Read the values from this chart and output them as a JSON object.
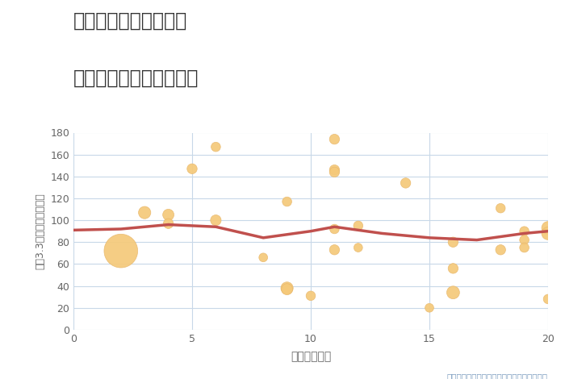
{
  "title_line1": "千葉県成田市北須賀の",
  "title_line2": "駅距離別中古戸建て価格",
  "xlabel": "駅距離（分）",
  "ylabel": "坪（3.3㎡）単価（万円）",
  "annotation": "円の大きさは、取引のあった物件面積を示す",
  "xlim": [
    0,
    20
  ],
  "ylim": [
    0,
    180
  ],
  "yticks": [
    0,
    20,
    40,
    60,
    80,
    100,
    120,
    140,
    160,
    180
  ],
  "xticks": [
    0,
    5,
    10,
    15,
    20
  ],
  "scatter_x": [
    2,
    3,
    4,
    4,
    5,
    6,
    6,
    8,
    9,
    9,
    9,
    10,
    11,
    11,
    11,
    11,
    11,
    12,
    12,
    14,
    15,
    16,
    16,
    16,
    18,
    18,
    19,
    19,
    19,
    20,
    20,
    20
  ],
  "scatter_y": [
    72,
    107,
    105,
    97,
    147,
    100,
    167,
    66,
    117,
    38,
    37,
    31,
    174,
    146,
    144,
    92,
    73,
    95,
    75,
    134,
    20,
    56,
    80,
    34,
    111,
    73,
    90,
    82,
    75,
    93,
    88,
    28
  ],
  "scatter_size": [
    900,
    120,
    100,
    80,
    80,
    90,
    70,
    60,
    70,
    120,
    100,
    70,
    80,
    80,
    80,
    70,
    80,
    70,
    60,
    80,
    60,
    80,
    80,
    130,
    70,
    80,
    70,
    70,
    70,
    130,
    130,
    70
  ],
  "line_x": [
    0,
    2,
    4,
    6,
    8,
    10,
    11,
    13,
    15,
    16,
    17,
    18,
    19,
    20
  ],
  "line_y": [
    91,
    92,
    96,
    94,
    84,
    90,
    94,
    88,
    84,
    83,
    82,
    85,
    88,
    90
  ],
  "scatter_color": "#F5C97A",
  "scatter_edge_color": "#E8B86D",
  "line_color": "#C0504D",
  "bg_color": "#FFFFFF",
  "grid_color": "#C8D8E8",
  "title_color": "#333333",
  "label_color": "#666666",
  "annotation_color": "#7A9BBF"
}
